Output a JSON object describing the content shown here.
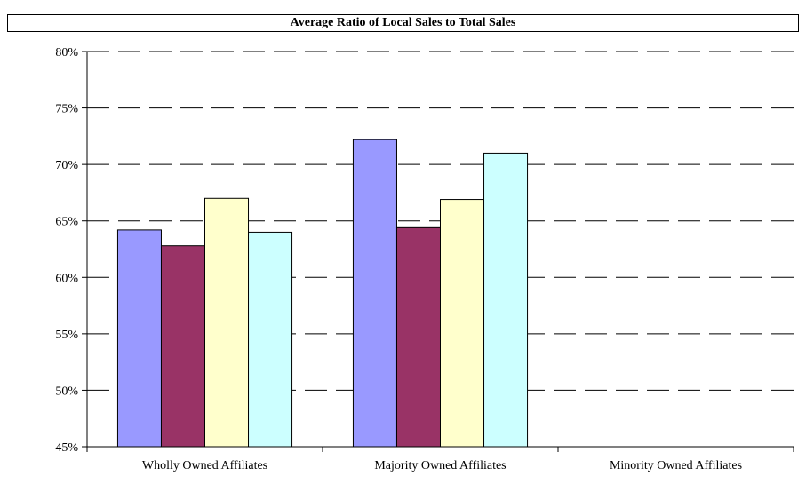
{
  "chart_data": {
    "type": "bar",
    "title": "Average Ratio of Local Sales to Total Sales",
    "xlabel": "",
    "ylabel": "",
    "categories": [
      "Wholly Owned Affiliates",
      "Majority Owned Affiliates",
      "Minority Owned Affiliates"
    ],
    "series": [
      {
        "color": "#9999ff",
        "values": [
          64.2,
          72.2,
          null
        ]
      },
      {
        "color": "#993366",
        "values": [
          62.8,
          64.4,
          null
        ]
      },
      {
        "color": "#ffffcc",
        "values": [
          67.0,
          66.9,
          null
        ]
      },
      {
        "color": "#ccffff",
        "values": [
          64.0,
          71.0,
          null
        ]
      }
    ],
    "ylim": [
      45,
      80
    ],
    "yticks": [
      45,
      50,
      55,
      60,
      65,
      70,
      75,
      80
    ],
    "ytick_labels": [
      "45%",
      "50%",
      "55%",
      "60%",
      "65%",
      "70%",
      "75%",
      "80%"
    ],
    "grid": true,
    "legend": "none"
  }
}
